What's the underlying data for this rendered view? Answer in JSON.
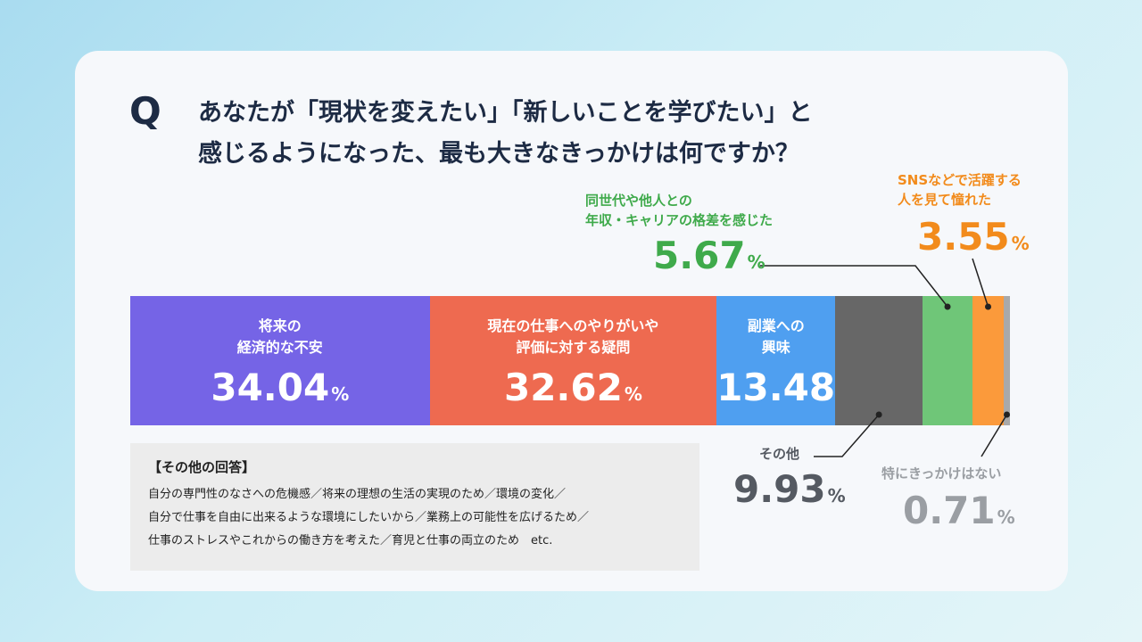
{
  "question": {
    "mark": "Q",
    "lines": [
      "あなたが「現状を変えたい」「新しいことを学びたい」と",
      "感じるようになった、最も大きなきっかけは何ですか？"
    ]
  },
  "chart_data": {
    "type": "bar",
    "orientation": "horizontal-stacked-100",
    "unit": "%",
    "series": [
      {
        "label_lines": [
          "将来の",
          "経済的な不安"
        ],
        "value": 34.04,
        "color": "#7564e6"
      },
      {
        "label_lines": [
          "現在の仕事へのやりがいや",
          "評価に対する疑問"
        ],
        "value": 32.62,
        "color": "#ee6a50"
      },
      {
        "label_lines": [
          "副業への",
          "興味"
        ],
        "value": 13.48,
        "color": "#4f9ff0"
      },
      {
        "label_lines": [
          "その他"
        ],
        "value": 9.93,
        "color": "#676767"
      },
      {
        "label_lines": [
          "同世代や他人との",
          "年収・キャリアの格差を感じた"
        ],
        "value": 5.67,
        "color": "#6fc678"
      },
      {
        "label_lines": [
          "SNSなどで活躍する",
          "人を見て憧れた"
        ],
        "value": 3.55,
        "color": "#fb9a3b"
      },
      {
        "label_lines": [
          "特にきっかけはない"
        ],
        "value": 0.71,
        "color": "#a9a9a9"
      }
    ],
    "value_texts": [
      "34.04",
      "32.62",
      "13.48",
      "9.93",
      "5.67",
      "3.55",
      "0.71"
    ],
    "pct_symbol": "%"
  },
  "others_box": {
    "title": "【その他の回答】",
    "lines": [
      "自分の専門性のなさへの危機感／将来の理想の生活の実現のため／環境の変化／",
      "自分で仕事を自由に出来るような環境にしたいから／業務上の可能性を広げるため／",
      "仕事のストレスやこれからの働き方を考えた／育児と仕事の両立のため　etc."
    ]
  }
}
